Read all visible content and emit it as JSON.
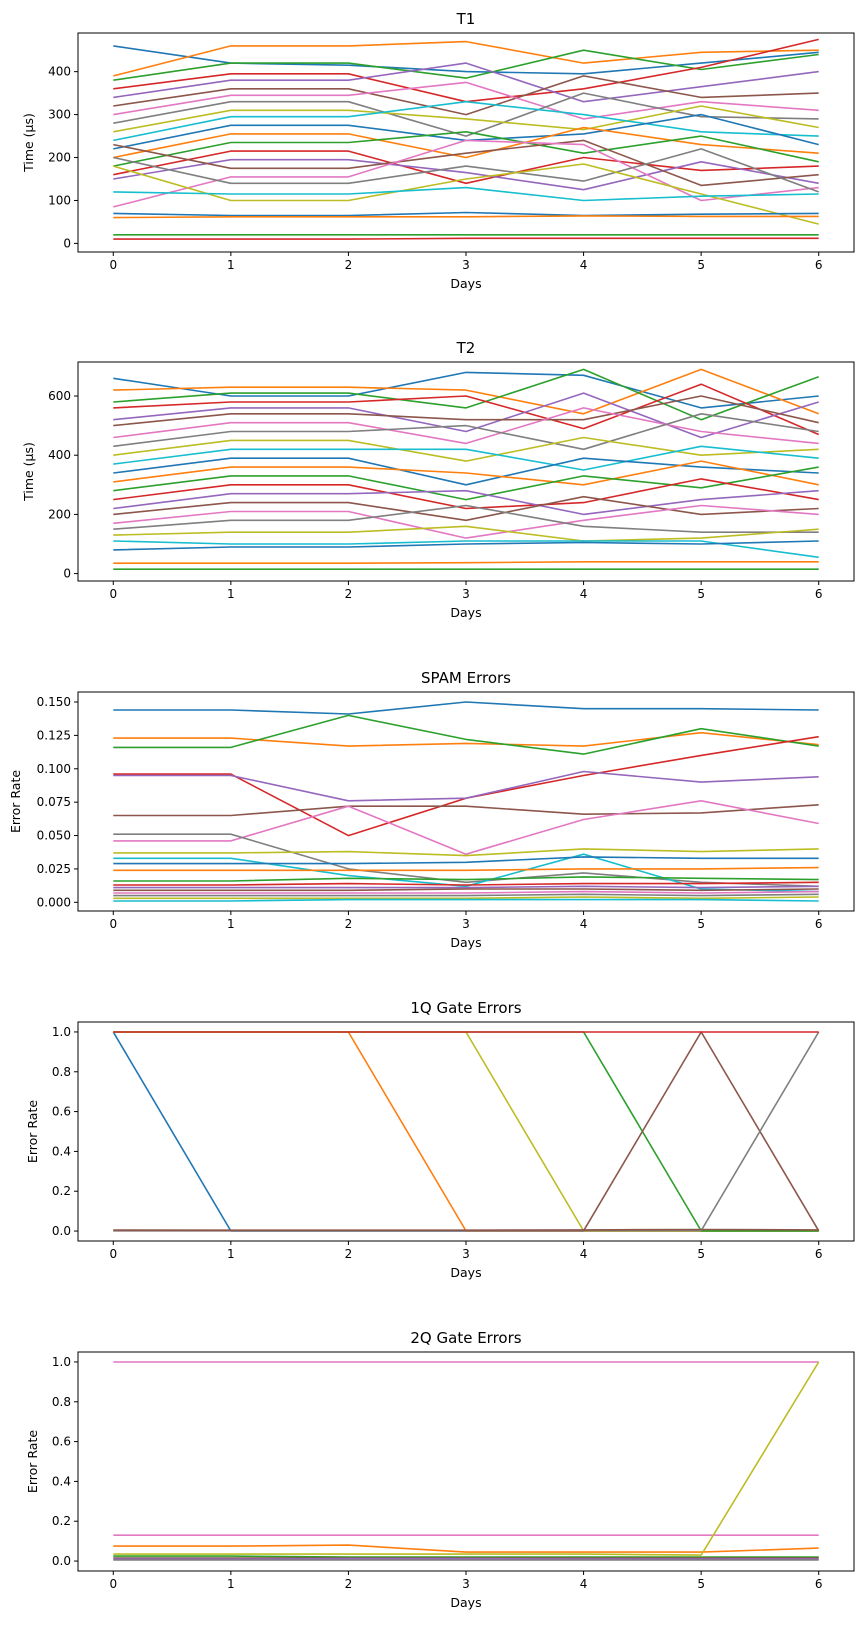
{
  "chart_data": [
    {
      "type": "line",
      "title": "T1",
      "xlabel": "Days",
      "ylabel": "Time (μs)",
      "x": [
        0,
        1,
        2,
        3,
        4,
        5,
        6
      ],
      "ylim": [
        -20,
        490
      ],
      "yticks": [
        0,
        100,
        200,
        300,
        400
      ],
      "ytick_labels": [
        "0",
        "100",
        "200",
        "300",
        "400"
      ],
      "series": [
        {
          "values": [
            460,
            420,
            415,
            400,
            395,
            420,
            445
          ]
        },
        {
          "values": [
            390,
            460,
            460,
            470,
            420,
            445,
            450
          ]
        },
        {
          "values": [
            380,
            420,
            420,
            385,
            450,
            405,
            440
          ]
        },
        {
          "values": [
            360,
            395,
            395,
            330,
            360,
            410,
            475
          ]
        },
        {
          "values": [
            340,
            380,
            380,
            420,
            330,
            365,
            400
          ]
        },
        {
          "values": [
            320,
            360,
            360,
            300,
            390,
            340,
            350
          ]
        },
        {
          "values": [
            300,
            345,
            345,
            375,
            290,
            330,
            310
          ]
        },
        {
          "values": [
            280,
            330,
            330,
            250,
            350,
            295,
            290
          ]
        },
        {
          "values": [
            260,
            310,
            310,
            290,
            265,
            320,
            270
          ]
        },
        {
          "values": [
            240,
            295,
            295,
            330,
            300,
            260,
            250
          ]
        },
        {
          "values": [
            220,
            275,
            275,
            240,
            255,
            300,
            230
          ]
        },
        {
          "values": [
            200,
            255,
            255,
            200,
            270,
            230,
            210
          ]
        },
        {
          "values": [
            180,
            235,
            235,
            260,
            210,
            250,
            190
          ]
        },
        {
          "values": [
            160,
            215,
            215,
            140,
            200,
            170,
            180
          ]
        },
        {
          "values": [
            150,
            195,
            195,
            165,
            125,
            190,
            140
          ]
        },
        {
          "values": [
            230,
            175,
            175,
            210,
            240,
            135,
            160
          ]
        },
        {
          "values": [
            85,
            155,
            155,
            240,
            230,
            100,
            130
          ]
        },
        {
          "values": [
            200,
            140,
            140,
            180,
            145,
            220,
            120
          ]
        },
        {
          "values": [
            180,
            100,
            100,
            150,
            185,
            115,
            45
          ]
        },
        {
          "values": [
            120,
            115,
            115,
            130,
            100,
            110,
            115
          ]
        },
        {
          "values": [
            70,
            65,
            65,
            72,
            65,
            68,
            70
          ]
        },
        {
          "values": [
            60,
            62,
            62,
            62,
            64,
            63,
            63
          ]
        },
        {
          "values": [
            20,
            20,
            20,
            20,
            20,
            20,
            20
          ]
        },
        {
          "values": [
            10,
            10,
            10,
            12,
            12,
            12,
            12
          ]
        }
      ]
    },
    {
      "type": "line",
      "title": "T2",
      "xlabel": "Days",
      "ylabel": "Time (μs)",
      "x": [
        0,
        1,
        2,
        3,
        4,
        5,
        6
      ],
      "ylim": [
        -25,
        715
      ],
      "yticks": [
        0,
        200,
        400,
        600
      ],
      "ytick_labels": [
        "0",
        "200",
        "400",
        "600"
      ],
      "series": [
        {
          "values": [
            660,
            600,
            600,
            680,
            670,
            560,
            600
          ]
        },
        {
          "values": [
            620,
            630,
            630,
            620,
            540,
            690,
            540
          ]
        },
        {
          "values": [
            580,
            610,
            610,
            560,
            690,
            520,
            665
          ]
        },
        {
          "values": [
            560,
            580,
            580,
            600,
            490,
            640,
            470
          ]
        },
        {
          "values": [
            520,
            560,
            560,
            480,
            610,
            460,
            580
          ]
        },
        {
          "values": [
            500,
            540,
            540,
            520,
            520,
            600,
            510
          ]
        },
        {
          "values": [
            460,
            510,
            510,
            440,
            560,
            480,
            440
          ]
        },
        {
          "values": [
            430,
            480,
            480,
            500,
            420,
            540,
            480
          ]
        },
        {
          "values": [
            400,
            450,
            450,
            380,
            460,
            400,
            420
          ]
        },
        {
          "values": [
            370,
            420,
            420,
            420,
            350,
            430,
            390
          ]
        },
        {
          "values": [
            340,
            390,
            390,
            300,
            390,
            360,
            340
          ]
        },
        {
          "values": [
            310,
            360,
            360,
            340,
            300,
            380,
            300
          ]
        },
        {
          "values": [
            280,
            330,
            330,
            250,
            330,
            290,
            360
          ]
        },
        {
          "values": [
            250,
            300,
            300,
            220,
            240,
            320,
            250
          ]
        },
        {
          "values": [
            220,
            270,
            270,
            280,
            200,
            250,
            280
          ]
        },
        {
          "values": [
            200,
            240,
            240,
            180,
            260,
            200,
            220
          ]
        },
        {
          "values": [
            170,
            210,
            210,
            120,
            180,
            230,
            200
          ]
        },
        {
          "values": [
            150,
            180,
            180,
            230,
            160,
            140,
            140
          ]
        },
        {
          "values": [
            130,
            140,
            140,
            160,
            110,
            120,
            150
          ]
        },
        {
          "values": [
            110,
            100,
            100,
            110,
            110,
            110,
            55
          ]
        },
        {
          "values": [
            80,
            90,
            90,
            100,
            105,
            100,
            110
          ]
        },
        {
          "values": [
            35,
            35,
            35,
            37,
            40,
            40,
            40
          ]
        },
        {
          "values": [
            15,
            15,
            15,
            15,
            15,
            15,
            15
          ]
        }
      ]
    },
    {
      "type": "line",
      "title": "SPAM Errors",
      "xlabel": "Days",
      "ylabel": "Error Rate",
      "x": [
        0,
        1,
        2,
        3,
        4,
        5,
        6
      ],
      "ylim": [
        -0.0065,
        0.1575
      ],
      "yticks": [
        0,
        0.025,
        0.05,
        0.075,
        0.1,
        0.125,
        0.15
      ],
      "ytick_labels": [
        "0.000",
        "0.025",
        "0.050",
        "0.075",
        "0.100",
        "0.125",
        "0.150"
      ],
      "series": [
        {
          "values": [
            0.144,
            0.144,
            0.141,
            0.15,
            0.145,
            0.145,
            0.144
          ]
        },
        {
          "values": [
            0.123,
            0.123,
            0.117,
            0.119,
            0.117,
            0.127,
            0.118
          ]
        },
        {
          "values": [
            0.116,
            0.116,
            0.14,
            0.122,
            0.111,
            0.13,
            0.117
          ]
        },
        {
          "values": [
            0.096,
            0.096,
            0.05,
            0.078,
            0.095,
            0.11,
            0.124
          ]
        },
        {
          "values": [
            0.095,
            0.095,
            0.076,
            0.078,
            0.098,
            0.09,
            0.094
          ]
        },
        {
          "values": [
            0.065,
            0.065,
            0.072,
            0.072,
            0.066,
            0.067,
            0.073
          ]
        },
        {
          "values": [
            0.046,
            0.046,
            0.072,
            0.036,
            0.062,
            0.076,
            0.059
          ]
        },
        {
          "values": [
            0.051,
            0.051,
            0.025,
            0.015,
            0.022,
            0.015,
            0.012
          ]
        },
        {
          "values": [
            0.037,
            0.037,
            0.038,
            0.035,
            0.04,
            0.038,
            0.04
          ]
        },
        {
          "values": [
            0.033,
            0.033,
            0.02,
            0.012,
            0.036,
            0.01,
            0.008
          ]
        },
        {
          "values": [
            0.029,
            0.029,
            0.029,
            0.03,
            0.034,
            0.033,
            0.033
          ]
        },
        {
          "values": [
            0.024,
            0.024,
            0.024,
            0.024,
            0.025,
            0.025,
            0.026
          ]
        },
        {
          "values": [
            0.016,
            0.016,
            0.018,
            0.017,
            0.019,
            0.018,
            0.017
          ]
        },
        {
          "values": [
            0.013,
            0.013,
            0.014,
            0.013,
            0.014,
            0.014,
            0.015
          ]
        },
        {
          "values": [
            0.011,
            0.011,
            0.011,
            0.011,
            0.012,
            0.011,
            0.012
          ]
        },
        {
          "values": [
            0.009,
            0.009,
            0.009,
            0.01,
            0.01,
            0.009,
            0.01
          ]
        },
        {
          "values": [
            0.007,
            0.007,
            0.007,
            0.007,
            0.008,
            0.007,
            0.008
          ]
        },
        {
          "values": [
            0.005,
            0.005,
            0.005,
            0.005,
            0.006,
            0.005,
            0.006
          ]
        },
        {
          "values": [
            0.003,
            0.003,
            0.003,
            0.003,
            0.004,
            0.003,
            0.004
          ]
        },
        {
          "values": [
            0.001,
            0.001,
            0.002,
            0.002,
            0.002,
            0.002,
            0.001
          ]
        }
      ]
    },
    {
      "type": "line",
      "title": "1Q Gate Errors",
      "xlabel": "Days",
      "ylabel": "Error Rate",
      "x": [
        0,
        1,
        2,
        3,
        4,
        5,
        6
      ],
      "ylim": [
        -0.05,
        1.05
      ],
      "yticks": [
        0,
        0.2,
        0.4,
        0.6,
        0.8,
        1.0
      ],
      "ytick_labels": [
        "0.0",
        "0.2",
        "0.4",
        "0.6",
        "0.8",
        "1.0"
      ],
      "series": [
        {
          "values": [
            1,
            0.0005,
            0.0005,
            0.0005,
            0.0005,
            0.0005,
            0.0005
          ]
        },
        {
          "values": [
            1,
            1,
            1,
            0.0005,
            0.0005,
            0.0005,
            0.0005
          ]
        },
        {
          "values": [
            1,
            1,
            1,
            1,
            0.0005,
            0.0005,
            0.0005
          ]
        },
        {
          "values": [
            1,
            1,
            1,
            1,
            1,
            0.0005,
            0.0005
          ]
        },
        {
          "values": [
            0.001,
            0.001,
            0.001,
            0.001,
            0.001,
            1,
            0.001
          ]
        },
        {
          "values": [
            0.002,
            0.002,
            0.002,
            0.002,
            0.002,
            0.002,
            1
          ]
        },
        {
          "values": [
            1,
            1,
            1,
            1,
            1,
            1,
            1
          ]
        },
        {
          "values": [
            0.005,
            0.004,
            0.004,
            0.004,
            0.006,
            0.008,
            0.006
          ]
        }
      ]
    },
    {
      "type": "line",
      "title": "2Q Gate Errors",
      "xlabel": "Days",
      "ylabel": "Error Rate",
      "x": [
        0,
        1,
        2,
        3,
        4,
        5,
        6
      ],
      "ylim": [
        -0.05,
        1.05
      ],
      "yticks": [
        0,
        0.2,
        0.4,
        0.6,
        0.8,
        1.0
      ],
      "ytick_labels": [
        "0.0",
        "0.2",
        "0.4",
        "0.6",
        "0.8",
        "1.0"
      ],
      "series": [
        {
          "values": [
            1,
            1,
            1,
            1,
            1,
            1,
            1
          ]
        },
        {
          "values": [
            0.13,
            0.13,
            0.13,
            0.13,
            0.13,
            0.13,
            0.13
          ]
        },
        {
          "values": [
            0.075,
            0.075,
            0.08,
            0.045,
            0.045,
            0.045,
            0.065
          ]
        },
        {
          "values": [
            0.035,
            0.035,
            0.035,
            0.035,
            0.035,
            0.03,
            1
          ]
        },
        {
          "values": [
            0.025,
            0.025,
            0.02,
            0.02,
            0.02,
            0.02,
            0.02
          ]
        },
        {
          "values": [
            0.015,
            0.015,
            0.015,
            0.015,
            0.015,
            0.015,
            0.015
          ]
        },
        {
          "values": [
            0.01,
            0.01,
            0.012,
            0.012,
            0.01,
            0.01,
            0.01
          ]
        },
        {
          "values": [
            0.005,
            0.005,
            0.005,
            0.005,
            0.005,
            0.005,
            0.005
          ]
        }
      ]
    }
  ],
  "colors": {
    "palette": [
      "#1f77b4",
      "#ff7f0e",
      "#2ca02c",
      "#d62728",
      "#9467bd",
      "#8c564b",
      "#e377c2",
      "#7f7f7f",
      "#bcbd22",
      "#17becf"
    ],
    "twoq_series": [
      "#e377c2",
      "#e377c2",
      "#ff7f0e",
      "#bcbd22",
      "#2ca02c",
      "#8c564b",
      "#9467bd",
      "#7f7f7f"
    ],
    "oneq_series": [
      "#1f77b4",
      "#ff7f0e",
      "#bcbd22",
      "#2ca02c",
      "#8c564b",
      "#7f7f7f",
      "#d62728",
      "#8c564b"
    ]
  }
}
